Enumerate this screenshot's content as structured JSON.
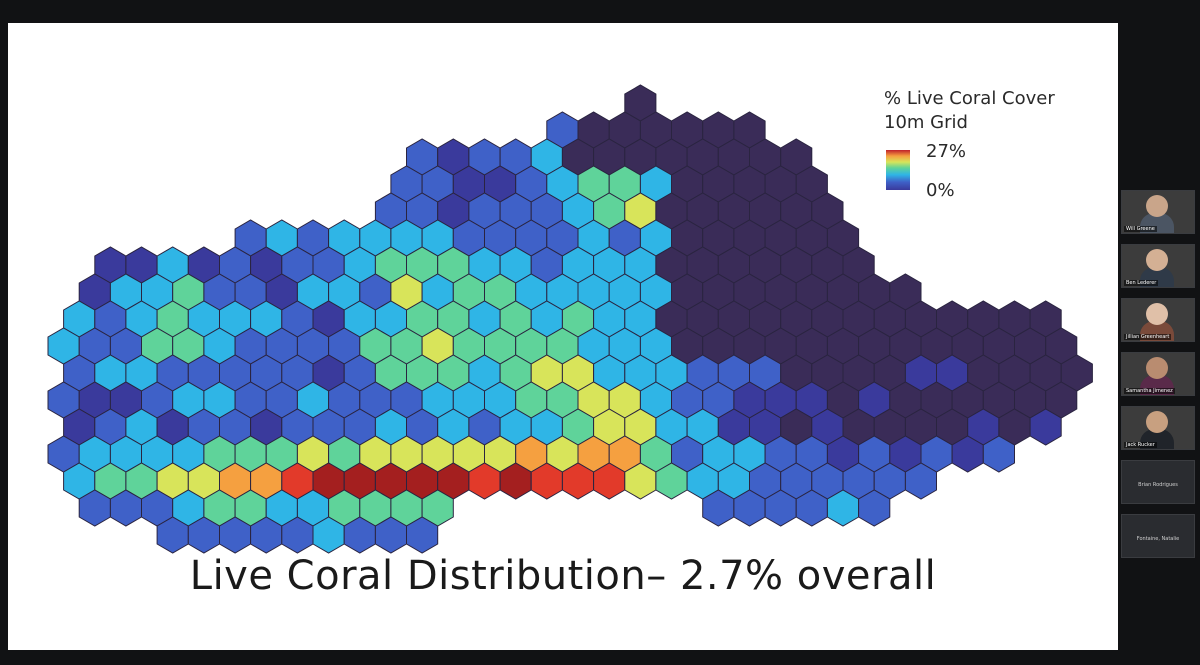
{
  "slide": {
    "title": "Live Coral Distribution– 2.7% overall",
    "legend_title": "% Live Coral Cover\n10m Grid",
    "legend_max": "27%",
    "legend_min": "0%",
    "colormap": [
      "#3a3a9c",
      "#3f61c8",
      "#2fb5e6",
      "#5fd39a",
      "#d8e45a",
      "#f5a040",
      "#e23a2a",
      "#a41f1f"
    ],
    "background_hex_color": "#3a2c58"
  },
  "participants": [
    {
      "name": "Will Greene",
      "video": true,
      "skin": "#c9a58a",
      "shirt": "#4b5563"
    },
    {
      "name": "Ben Lederer",
      "video": true,
      "skin": "#d4b094",
      "shirt": "#2f3a48"
    },
    {
      "name": "Jillian Greenheart",
      "video": true,
      "skin": "#e0c0a8",
      "shirt": "#7a4a3a"
    },
    {
      "name": "Samantha Jimenez",
      "video": true,
      "skin": "#b98c70",
      "shirt": "#5a2a4a"
    },
    {
      "name": "Jack Rucker",
      "video": true,
      "skin": "#c8a080",
      "shirt": "#20242a"
    },
    {
      "name": "Brian Rodrigues",
      "video": false
    },
    {
      "name": "Fontaine, Natalie",
      "video": false
    }
  ]
}
